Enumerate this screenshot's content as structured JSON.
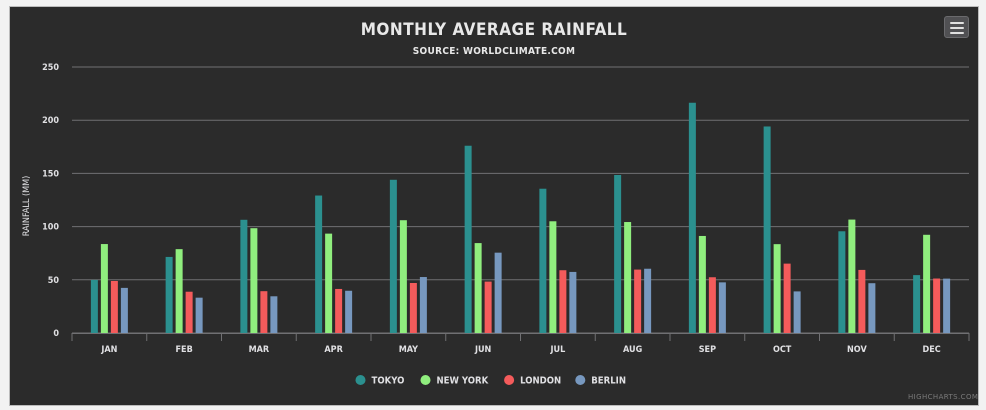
{
  "chart_data": {
    "type": "bar",
    "title": "MONTHLY AVERAGE RAINFALL",
    "subtitle": "SOURCE: WORLDCLIMATE.COM",
    "ylabel": "RAINFALL (MM)",
    "xlabel": "",
    "ylim": [
      0,
      250
    ],
    "yticks": [
      "0",
      "50",
      "100",
      "150",
      "200",
      "250"
    ],
    "grid": true,
    "legend_position": "bottom-center",
    "categories": [
      "JAN",
      "FEB",
      "MAR",
      "APR",
      "MAY",
      "JUN",
      "JUL",
      "AUG",
      "SEP",
      "OCT",
      "NOV",
      "DEC"
    ],
    "series": [
      {
        "name": "TOKYO",
        "color": "#2b908f",
        "values": [
          49.9,
          71.5,
          106.4,
          129.2,
          144.0,
          176.0,
          135.6,
          148.5,
          216.4,
          194.1,
          95.6,
          54.4
        ]
      },
      {
        "name": "NEW YORK",
        "color": "#90ee7e",
        "values": [
          83.6,
          78.8,
          98.5,
          93.4,
          106.0,
          84.5,
          105.0,
          104.3,
          91.2,
          83.5,
          106.6,
          92.3
        ]
      },
      {
        "name": "LONDON",
        "color": "#f45b5b",
        "values": [
          48.9,
          38.8,
          39.3,
          41.4,
          47.0,
          48.3,
          59.0,
          59.6,
          52.4,
          65.2,
          59.3,
          51.2
        ]
      },
      {
        "name": "BERLIN",
        "color": "#7798bf",
        "values": [
          42.4,
          33.2,
          34.5,
          39.7,
          52.6,
          75.5,
          57.4,
          60.4,
          47.6,
          39.1,
          46.8,
          51.1
        ]
      }
    ]
  },
  "credits": "HIGHCHARTS.COM",
  "menu_icon": "hamburger-menu-icon",
  "colors": {
    "background": "#2b2b2b",
    "grid": "#707073",
    "text": "#e0e0e3"
  }
}
